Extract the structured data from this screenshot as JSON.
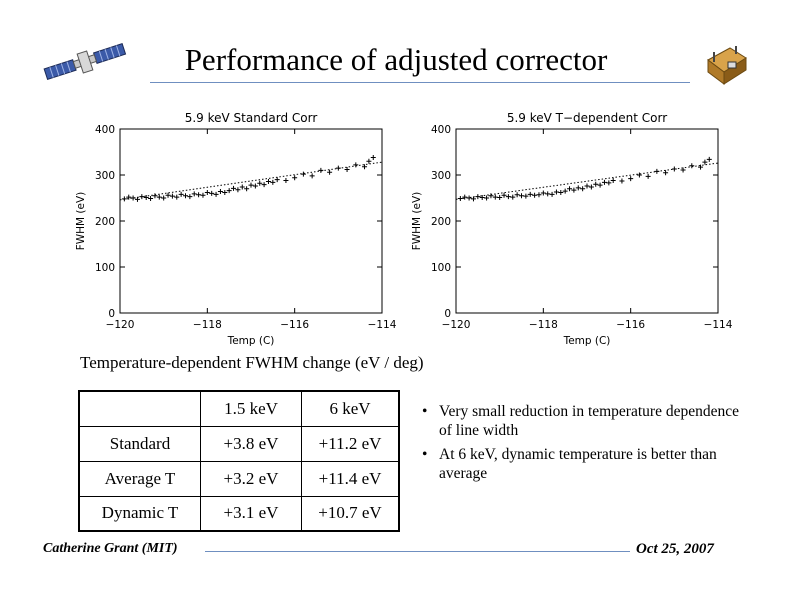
{
  "slide": {
    "title": "Performance of adjusted corrector",
    "caption": "Temperature-dependent FWHM change (eV / deg)",
    "footer_left": "Catherine Grant (MIT)",
    "footer_right": "Oct 25, 2007",
    "accent_color": "#6f8fc0"
  },
  "logos": {
    "left": "satellite-icon",
    "right": "spacecraft-icon"
  },
  "table": {
    "header": [
      "",
      "1.5 keV",
      "6 keV"
    ],
    "rows": [
      [
        "Standard",
        "+3.8 eV",
        "+11.2 eV"
      ],
      [
        "Average T",
        "+3.2 eV",
        "+11.4 eV"
      ],
      [
        "Dynamic T",
        "+3.1 eV",
        "+10.7 eV"
      ]
    ]
  },
  "bullets": [
    "Very small reduction in temperature dependence of line width",
    "At 6 keV, dynamic temperature is better than average"
  ],
  "chart_data": [
    {
      "type": "scatter",
      "title": "5.9 keV Standard Corr",
      "xlabel": "Temp (C)",
      "ylabel": "FWHM (eV)",
      "xlim": [
        -120,
        -114
      ],
      "ylim": [
        0,
        400
      ],
      "xticks": [
        -120,
        -118,
        -116,
        -114
      ],
      "yticks": [
        0,
        100,
        200,
        300,
        400
      ],
      "grid": false,
      "marker": "+",
      "series": [
        {
          "x": [
            -119.9,
            -119.8,
            -119.7,
            -119.6,
            -119.5,
            -119.4,
            -119.3,
            -119.2,
            -119.1,
            -119.0,
            -118.9,
            -118.8,
            -118.7,
            -118.6,
            -118.5,
            -118.4,
            -118.3,
            -118.2,
            -118.1,
            -118.0,
            -117.9,
            -117.8,
            -117.7,
            -117.6,
            -117.5,
            -117.4,
            -117.3,
            -117.2,
            -117.1,
            -117.0,
            -116.9,
            -116.8,
            -116.7,
            -116.6,
            -116.5,
            -116.4,
            -116.2,
            -116.0,
            -115.8,
            -115.6,
            -115.4,
            -115.2,
            -115.0,
            -114.8,
            -114.6,
            -114.4,
            -114.3,
            -114.2
          ],
          "y": [
            248,
            252,
            250,
            247,
            253,
            251,
            249,
            255,
            252,
            250,
            256,
            254,
            252,
            258,
            255,
            253,
            259,
            257,
            256,
            262,
            260,
            258,
            264,
            262,
            266,
            271,
            268,
            274,
            270,
            278,
            276,
            282,
            279,
            286,
            284,
            290,
            288,
            294,
            302,
            298,
            310,
            306,
            315,
            312,
            322,
            318,
            330,
            338
          ]
        }
      ],
      "trend": {
        "x": [
          -120,
          -114
        ],
        "y": [
          246,
          328
        ]
      }
    },
    {
      "type": "scatter",
      "title": "5.9 keV T−dependent Corr",
      "xlabel": "Temp (C)",
      "ylabel": "FWHM (eV)",
      "xlim": [
        -120,
        -114
      ],
      "ylim": [
        0,
        400
      ],
      "xticks": [
        -120,
        -118,
        -116,
        -114
      ],
      "yticks": [
        0,
        100,
        200,
        300,
        400
      ],
      "grid": false,
      "marker": "+",
      "series": [
        {
          "x": [
            -119.9,
            -119.8,
            -119.7,
            -119.6,
            -119.5,
            -119.4,
            -119.3,
            -119.2,
            -119.1,
            -119.0,
            -118.9,
            -118.8,
            -118.7,
            -118.6,
            -118.5,
            -118.4,
            -118.3,
            -118.2,
            -118.1,
            -118.0,
            -117.9,
            -117.8,
            -117.7,
            -117.6,
            -117.5,
            -117.4,
            -117.3,
            -117.2,
            -117.1,
            -117.0,
            -116.9,
            -116.8,
            -116.7,
            -116.6,
            -116.5,
            -116.4,
            -116.2,
            -116.0,
            -115.8,
            -115.6,
            -115.4,
            -115.2,
            -115.0,
            -114.8,
            -114.6,
            -114.4,
            -114.3,
            -114.2
          ],
          "y": [
            249,
            252,
            250,
            248,
            253,
            251,
            250,
            255,
            252,
            251,
            256,
            253,
            252,
            257,
            255,
            254,
            258,
            256,
            257,
            261,
            259,
            258,
            263,
            262,
            265,
            270,
            267,
            272,
            270,
            276,
            274,
            280,
            278,
            284,
            283,
            288,
            287,
            292,
            300,
            297,
            308,
            305,
            313,
            311,
            320,
            317,
            328,
            334
          ]
        }
      ],
      "trend": {
        "x": [
          -120,
          -114
        ],
        "y": [
          247,
          326
        ]
      }
    }
  ]
}
